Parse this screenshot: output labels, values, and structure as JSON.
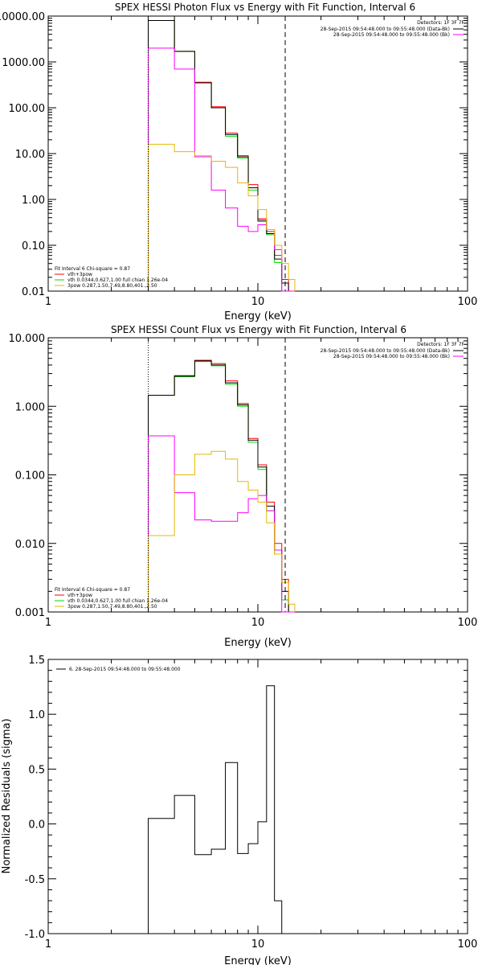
{
  "chart_data": [
    {
      "type": "line",
      "title": "SPEX HESSI Photon Flux vs Energy with Fit Function, Interval 6",
      "xlabel": "Energy (keV)",
      "ylabel": "",
      "xscale": "log",
      "yscale": "log",
      "xlim": [
        1,
        100
      ],
      "ylim": [
        0.01,
        10000
      ],
      "x_ticks": [
        "1",
        "10",
        "100"
      ],
      "y_ticks": [
        "0.01",
        "0.10",
        "1.00",
        "10.00",
        "100.00",
        "1000.00",
        "10000.00"
      ],
      "detectors": "Detectors: 1F 3F 7F",
      "time_lines": [
        {
          "text": "28-Sep-2015 09:54:48.000 to 09:55:48.000 (Data-Bk)",
          "color": "#000000"
        },
        {
          "text": "28-Sep-2015 09:54:48.000 to 09:55:48.000 (Bk)",
          "color": "#ff00ff"
        }
      ],
      "legend": {
        "header": "Fit Interval 6   Chi-square = 0.87",
        "items": [
          {
            "text": "vth+3pow",
            "color": "#ff0000"
          },
          {
            "text": "vth 0.0344,0.627,1.00  full chian 1.26e-04",
            "color": "#00dd00"
          },
          {
            "text": "3pow 0.287,1.50,7.49,8.80,401.,2.50",
            "color": "#e6b800"
          }
        ]
      },
      "edges": [
        3,
        4,
        5,
        6,
        7,
        8,
        9,
        10,
        11,
        12,
        13,
        14,
        15
      ],
      "series": [
        {
          "color": "#ff0000",
          "values": [
            8000,
            1700,
            360,
            105,
            28,
            9,
            2.1,
            0.38,
            0.2,
            0.06,
            0.018,
            0.01
          ]
        },
        {
          "color": "#00dd00",
          "values": [
            8000,
            1700,
            350,
            100,
            24,
            8,
            1.6,
            0.33,
            0.17,
            0.042,
            0.01,
            0.01
          ]
        },
        {
          "color": "#000000",
          "values": [
            8000,
            1700,
            350,
            100,
            26,
            8.5,
            1.8,
            0.35,
            0.18,
            0.05,
            0.015,
            0.01
          ]
        },
        {
          "color": "#ff00ff",
          "values": [
            2000,
            700,
            8.5,
            1.6,
            0.65,
            0.26,
            0.2,
            0.28,
            0.22,
            0.08,
            0.01,
            0.01
          ]
        },
        {
          "color": "#e6b800",
          "values": [
            16,
            11,
            9,
            6.8,
            5,
            2.3,
            1.2,
            0.6,
            0.22,
            0.1,
            0.04,
            0.018
          ]
        }
      ],
      "vlines": [
        {
          "x": 3,
          "style": "dotted"
        },
        {
          "x": 13.5,
          "style": "dashed"
        }
      ]
    },
    {
      "type": "line",
      "title": "SPEX HESSI Count Flux vs Energy with Fit Function, Interval 6",
      "xlabel": "Energy (keV)",
      "ylabel": "",
      "xscale": "log",
      "yscale": "log",
      "xlim": [
        1,
        100
      ],
      "ylim": [
        0.001,
        10
      ],
      "x_ticks": [
        "1",
        "10",
        "100"
      ],
      "y_ticks": [
        "0.001",
        "0.010",
        "0.100",
        "1.000",
        "10.000"
      ],
      "detectors": "Detectors: 1F 3F 7F",
      "time_lines": [
        {
          "text": "28-Sep-2015 09:54:48.000 to 09:55:48.000 (Data-Bk)",
          "color": "#000000"
        },
        {
          "text": "28-Sep-2015 09:54:48.000 to 09:55:48.000 (Bk)",
          "color": "#ff00ff"
        }
      ],
      "legend": {
        "header": "Fit Interval 6   Chi-square = 0.87",
        "items": [
          {
            "text": "vth+3pow",
            "color": "#ff0000"
          },
          {
            "text": "vth 0.0344,0.627,1.00  full chian 1.26e-04",
            "color": "#00dd00"
          },
          {
            "text": "3pow 0.287,1.50,7.49,8.80,401.,2.50",
            "color": "#e6b800"
          }
        ]
      },
      "edges": [
        3,
        4,
        5,
        6,
        7,
        8,
        9,
        10,
        11,
        12,
        13,
        14,
        15
      ],
      "series": [
        {
          "color": "#ff0000",
          "values": [
            1.45,
            2.8,
            4.7,
            4.2,
            2.35,
            1.1,
            0.34,
            0.14,
            0.04,
            0.01,
            0.003,
            0.001
          ]
        },
        {
          "color": "#00dd00",
          "values": [
            1.45,
            2.7,
            4.5,
            3.9,
            2.1,
            1.0,
            0.3,
            0.12,
            0.03,
            0.007,
            0.0015,
            0.001
          ]
        },
        {
          "color": "#000000",
          "values": [
            1.45,
            2.75,
            4.6,
            4.0,
            2.2,
            1.05,
            0.32,
            0.13,
            0.035,
            0.008,
            0.002,
            0.001
          ]
        },
        {
          "color": "#ff00ff",
          "values": [
            0.37,
            0.055,
            0.022,
            0.021,
            0.021,
            0.028,
            0.045,
            0.05,
            0.03,
            0.008,
            0.001,
            0.001
          ]
        },
        {
          "color": "#e6b800",
          "values": [
            0.013,
            0.1,
            0.2,
            0.22,
            0.17,
            0.08,
            0.06,
            0.04,
            0.02,
            0.007,
            0.0027,
            0.0013
          ]
        }
      ],
      "vlines": [
        {
          "x": 3,
          "style": "dotted"
        },
        {
          "x": 13.5,
          "style": "dashed"
        }
      ]
    },
    {
      "type": "line",
      "title": "",
      "xlabel": "Energy (keV)",
      "ylabel": "Normalized Residuals (sigma)",
      "xscale": "log",
      "yscale": "linear",
      "xlim": [
        1,
        100
      ],
      "ylim": [
        -1.0,
        1.5
      ],
      "x_ticks": [
        "1",
        "10",
        "100"
      ],
      "y_ticks": [
        "-1.0",
        "-0.5",
        "0.0",
        "0.5",
        "1.0",
        "1.5"
      ],
      "legend_text": "6. 28-Sep-2015 09:54:48.000 to 09:55:48.000",
      "edges": [
        3,
        4,
        5,
        6,
        7,
        8,
        9,
        10,
        11,
        12,
        13
      ],
      "series": [
        {
          "color": "#000000",
          "values": [
            0.05,
            0.26,
            -0.28,
            -0.23,
            0.56,
            -0.27,
            -0.18,
            0.02,
            1.26,
            -0.7
          ]
        }
      ]
    }
  ]
}
